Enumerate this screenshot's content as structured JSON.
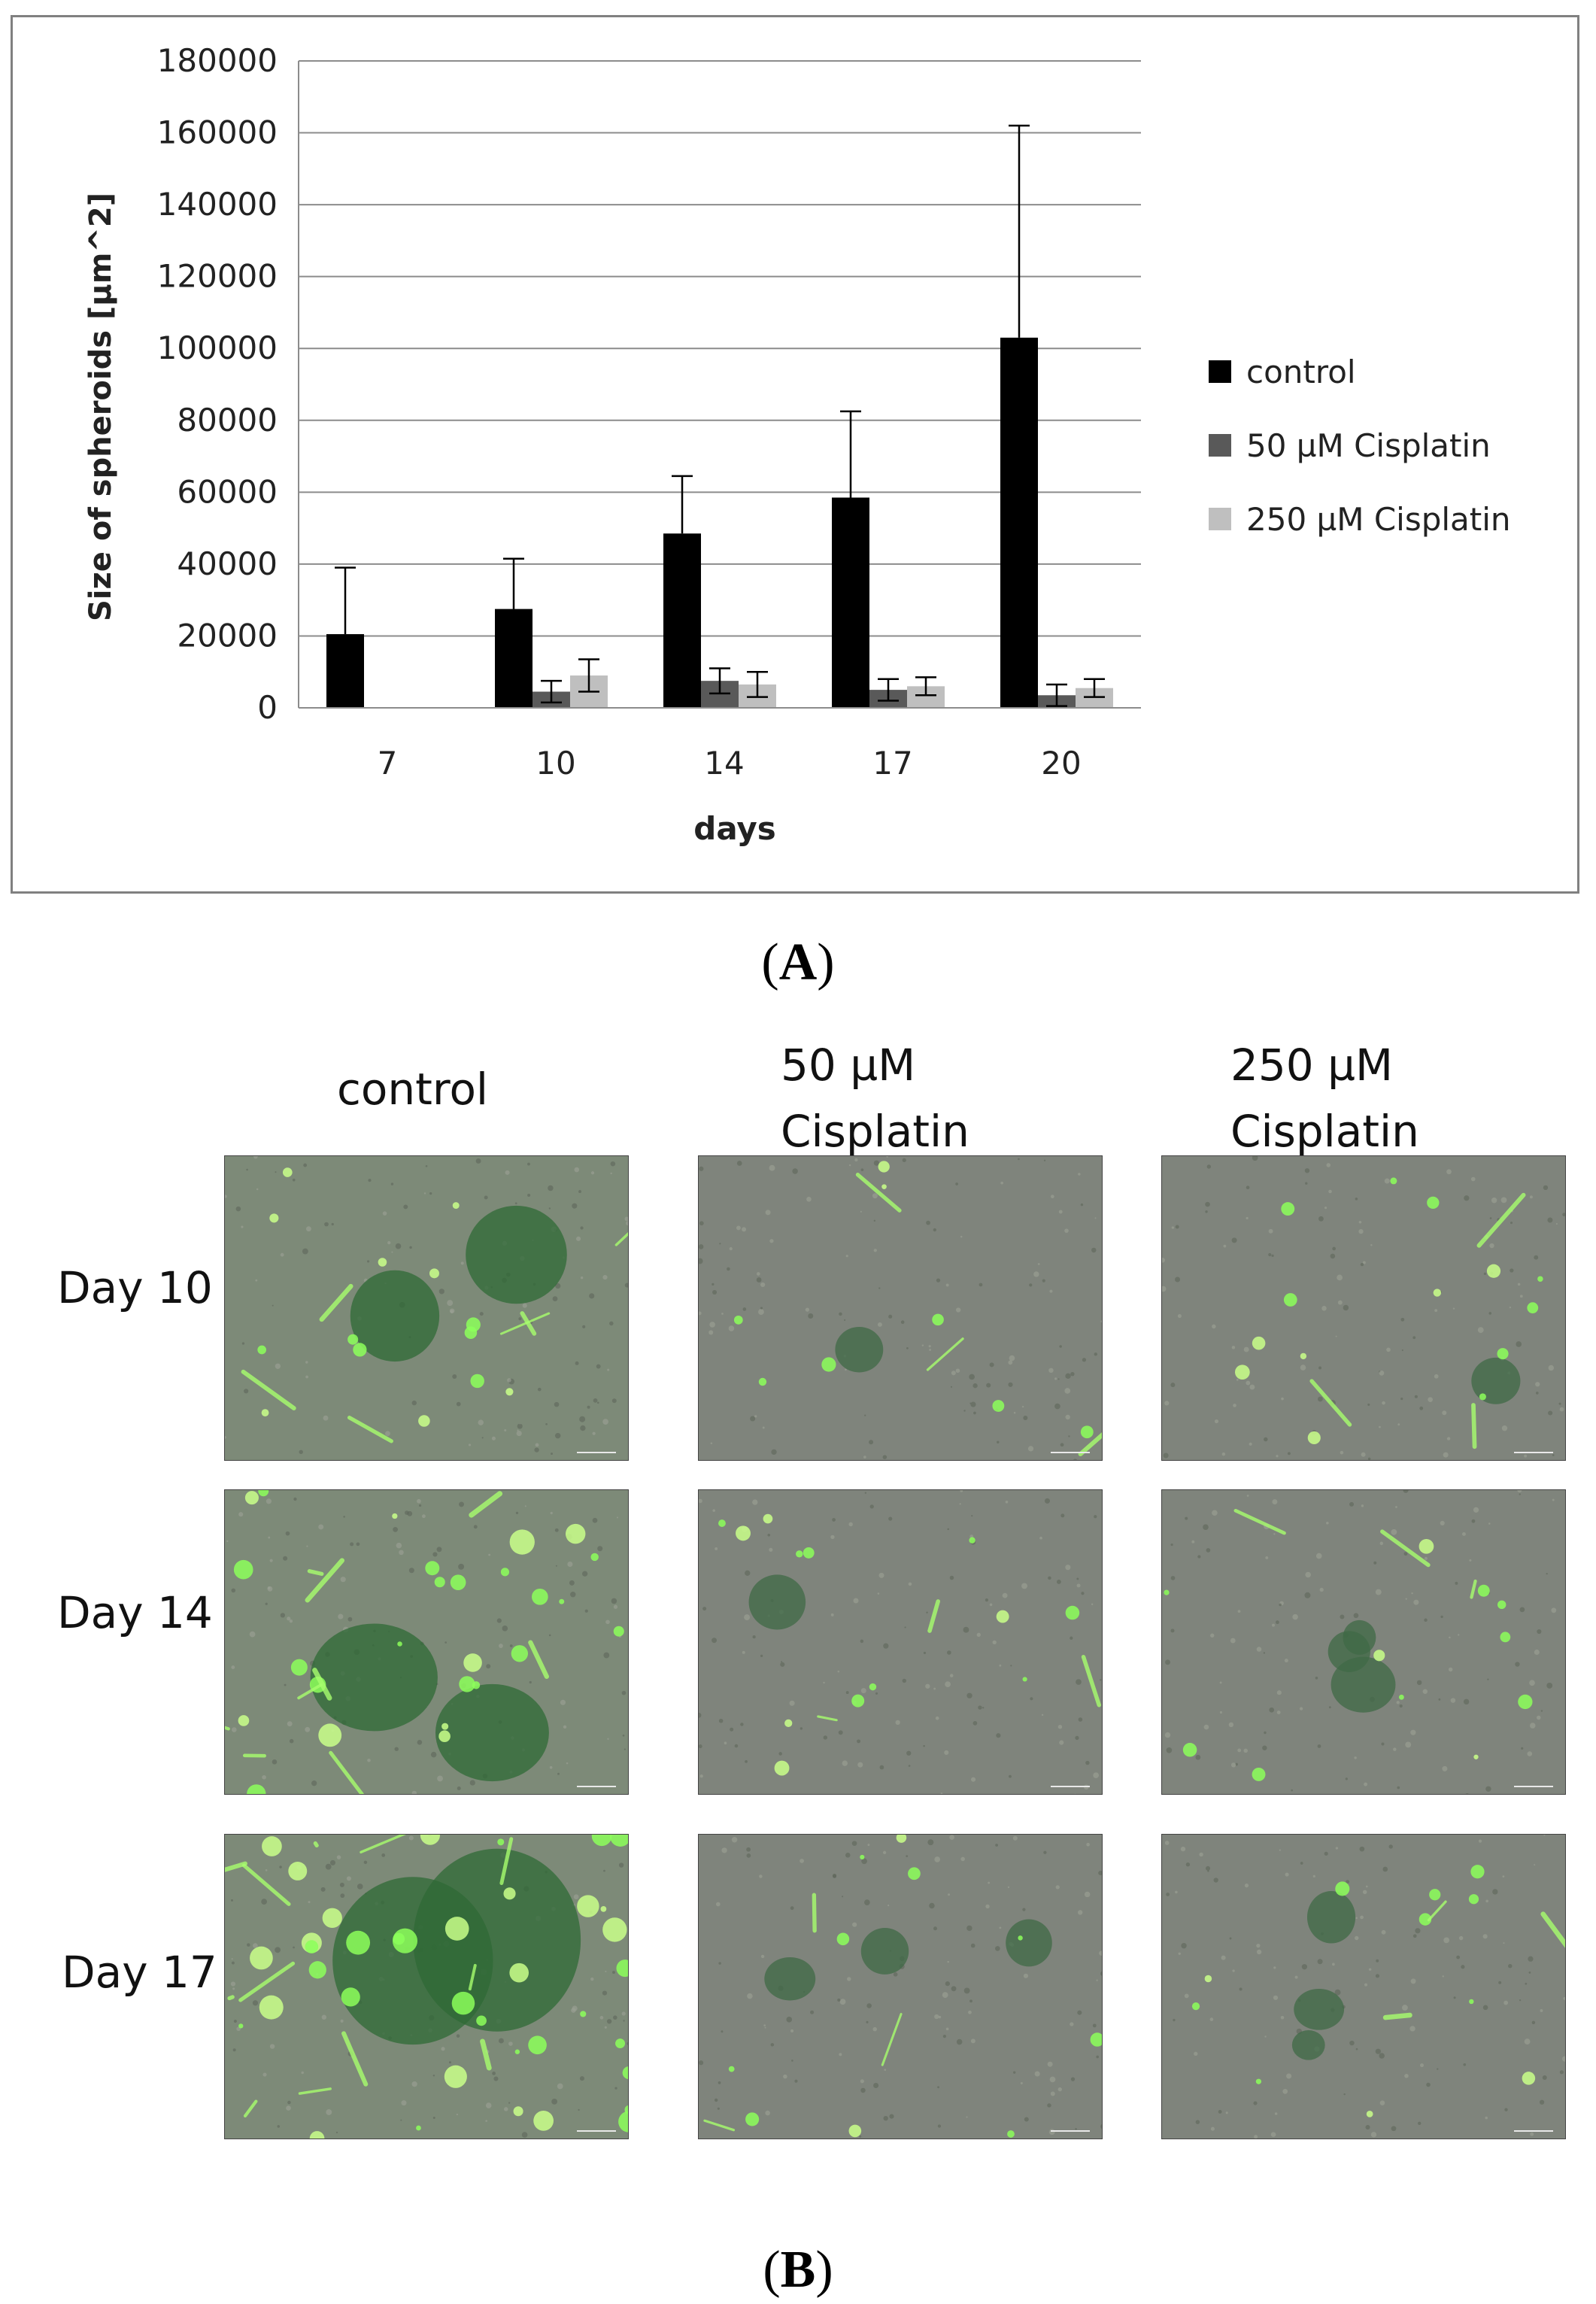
{
  "chart_data": {
    "type": "bar",
    "xlabel": "days",
    "ylabel": "Size of spheroids [µm^2]",
    "categories": [
      "7",
      "10",
      "14",
      "17",
      "20"
    ],
    "ylim": [
      0,
      180000
    ],
    "yticks": [
      "180000",
      "160000",
      "140000",
      "120000",
      "100000",
      "80000",
      "60000",
      "40000",
      "20000",
      "0"
    ],
    "grid": true,
    "legend_position": "right",
    "series": [
      {
        "name": "control",
        "color": "#000000",
        "values": [
          20500,
          27500,
          48500,
          58500,
          103000
        ],
        "errors": [
          18500,
          14000,
          16000,
          24000,
          59000
        ]
      },
      {
        "name": "50 µM Cisplatin",
        "color": "#595959",
        "values": [
          null,
          4500,
          7500,
          5000,
          3500
        ],
        "errors": [
          null,
          3000,
          3500,
          3000,
          3000
        ]
      },
      {
        "name": "250 µM Cisplatin",
        "color": "#bfbfbf",
        "values": [
          null,
          9000,
          6500,
          6000,
          5500
        ],
        "errors": [
          null,
          4500,
          3500,
          2500,
          2500
        ]
      }
    ]
  },
  "panel_a_label": {
    "open": "(",
    "letter": "A",
    "close": ")"
  },
  "panel_b_label": {
    "open": "(",
    "letter": "B",
    "close": ")"
  },
  "micrographs": {
    "columns": [
      "control",
      "50 µM\nCisplatin",
      "250 µM\nCisplatin"
    ],
    "rows": [
      "Day 10",
      "Day 14",
      "Day 17"
    ]
  }
}
